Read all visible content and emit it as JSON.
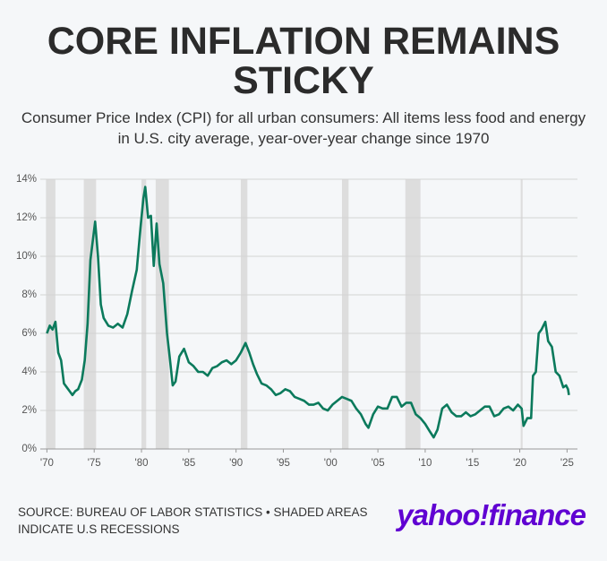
{
  "chart_data": {
    "type": "line",
    "title": "CORE INFLATION REMAINS STICKY",
    "subtitle": "Consumer Price Index (CPI) for all urban consumers: All items less food and energy in U.S. city average, year-over-year change since 1970",
    "color": "#0b7a5c",
    "x": [
      1970.0,
      1970.3,
      1970.6,
      1970.9,
      1971.2,
      1971.5,
      1971.8,
      1972.1,
      1972.4,
      1972.7,
      1973.0,
      1973.3,
      1973.7,
      1974.0,
      1974.3,
      1974.6,
      1974.9,
      1975.1,
      1975.4,
      1975.7,
      1976.0,
      1976.5,
      1977.0,
      1977.5,
      1978.0,
      1978.5,
      1979.0,
      1979.5,
      1979.9,
      1980.2,
      1980.4,
      1980.7,
      1981.0,
      1981.3,
      1981.6,
      1981.9,
      1982.3,
      1982.7,
      1983.0,
      1983.3,
      1983.6,
      1984.0,
      1984.5,
      1985.0,
      1985.5,
      1986.0,
      1986.5,
      1987.0,
      1987.5,
      1988.0,
      1988.5,
      1989.0,
      1989.5,
      1990.0,
      1990.5,
      1991.0,
      1991.4,
      1991.8,
      1992.2,
      1992.7,
      1993.2,
      1993.7,
      1994.2,
      1994.7,
      1995.2,
      1995.7,
      1996.2,
      1996.7,
      1997.2,
      1997.7,
      1998.2,
      1998.7,
      1999.2,
      1999.7,
      2000.2,
      2000.7,
      2001.2,
      2001.7,
      2002.2,
      2002.7,
      2003.2,
      2003.7,
      2004.0,
      2004.5,
      2005.0,
      2005.5,
      2006.0,
      2006.5,
      2007.0,
      2007.5,
      2008.0,
      2008.5,
      2009.0,
      2009.5,
      2010.0,
      2010.5,
      2010.9,
      2011.3,
      2011.8,
      2012.3,
      2012.8,
      2013.3,
      2013.8,
      2014.3,
      2014.8,
      2015.3,
      2015.8,
      2016.3,
      2016.8,
      2017.3,
      2017.8,
      2018.3,
      2018.8,
      2019.3,
      2019.8,
      2020.2,
      2020.4,
      2020.8,
      2021.2,
      2021.4,
      2021.7,
      2022.0,
      2022.3,
      2022.7,
      2023.0,
      2023.4,
      2023.8,
      2024.2,
      2024.6,
      2024.9,
      2025.1,
      2025.2
    ],
    "values": [
      6.0,
      6.4,
      6.2,
      6.6,
      5.0,
      4.6,
      3.4,
      3.2,
      3.0,
      2.8,
      3.0,
      3.1,
      3.6,
      4.6,
      6.5,
      9.8,
      11.0,
      11.8,
      10.0,
      7.5,
      6.8,
      6.4,
      6.3,
      6.5,
      6.3,
      7.0,
      8.2,
      9.3,
      11.5,
      13.0,
      13.6,
      12.0,
      12.1,
      9.5,
      11.7,
      9.6,
      8.6,
      6.0,
      4.7,
      3.3,
      3.5,
      4.8,
      5.2,
      4.5,
      4.3,
      4.0,
      4.0,
      3.8,
      4.2,
      4.3,
      4.5,
      4.6,
      4.4,
      4.6,
      5.0,
      5.5,
      5.0,
      4.4,
      3.9,
      3.4,
      3.3,
      3.1,
      2.8,
      2.9,
      3.1,
      3.0,
      2.7,
      2.6,
      2.5,
      2.3,
      2.3,
      2.4,
      2.1,
      2.0,
      2.3,
      2.5,
      2.7,
      2.6,
      2.5,
      2.1,
      1.8,
      1.3,
      1.1,
      1.8,
      2.2,
      2.1,
      2.1,
      2.7,
      2.7,
      2.2,
      2.4,
      2.4,
      1.8,
      1.6,
      1.3,
      0.9,
      0.6,
      1.0,
      2.1,
      2.3,
      1.9,
      1.7,
      1.7,
      1.9,
      1.7,
      1.8,
      2.0,
      2.2,
      2.2,
      1.7,
      1.8,
      2.1,
      2.2,
      2.0,
      2.3,
      2.1,
      1.2,
      1.6,
      1.6,
      3.8,
      4.0,
      6.0,
      6.2,
      6.6,
      5.6,
      5.3,
      4.0,
      3.8,
      3.2,
      3.3,
      3.1,
      2.8
    ],
    "recessions": [
      [
        1969.9,
        1970.9
      ],
      [
        1973.9,
        1975.2
      ],
      [
        1980.0,
        1980.5
      ],
      [
        1981.5,
        1982.9
      ],
      [
        1990.5,
        1991.2
      ],
      [
        2001.2,
        2001.9
      ],
      [
        2007.9,
        2009.5
      ],
      [
        2020.1,
        2020.3
      ]
    ],
    "recession_color": "#dddddd",
    "xlim": [
      1969.3,
      2026.1
    ],
    "ylim": [
      0,
      14
    ],
    "xticks": [
      {
        "value": 1970,
        "label": "'70"
      },
      {
        "value": 1975,
        "label": "'75"
      },
      {
        "value": 1980,
        "label": "'80"
      },
      {
        "value": 1985,
        "label": "'85"
      },
      {
        "value": 1990,
        "label": "'90"
      },
      {
        "value": 1995,
        "label": "'95"
      },
      {
        "value": 2000,
        "label": "'00"
      },
      {
        "value": 2005,
        "label": "'05"
      },
      {
        "value": 2010,
        "label": "'10"
      },
      {
        "value": 2015,
        "label": "'15"
      },
      {
        "value": 2020,
        "label": "'20"
      },
      {
        "value": 2025,
        "label": "'25"
      }
    ],
    "yticks": [
      {
        "value": 0,
        "label": "0%"
      },
      {
        "value": 2,
        "label": "2%"
      },
      {
        "value": 4,
        "label": "4%"
      },
      {
        "value": 6,
        "label": "6%"
      },
      {
        "value": 8,
        "label": "8%"
      },
      {
        "value": 10,
        "label": "10%"
      },
      {
        "value": 12,
        "label": "12%"
      },
      {
        "value": 14,
        "label": "14%"
      }
    ],
    "grid": true,
    "source": "SOURCE: BUREAU OF LABOR STATISTICS • SHADED AREAS INDICATE U.S RECESSIONS",
    "logo": "yahoo!finance"
  }
}
